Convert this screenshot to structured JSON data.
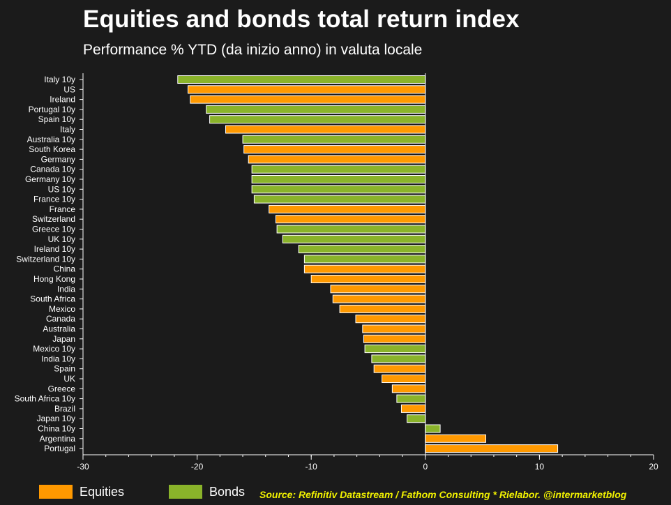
{
  "header": {
    "title": "Equities and bonds total return index",
    "subtitle": "Performance % YTD (da inizio anno) in valuta locale"
  },
  "legend": {
    "equities": "Equities",
    "bonds": "Bonds"
  },
  "source": "Source: Refinitiv Datastream / Fathom Consulting * Rielabor. @intermarketblog",
  "colors": {
    "background": "#1b1b1b",
    "equities": "#ff9900",
    "bonds": "#8ab32a",
    "bar_border": "#ffffff"
  },
  "chart_data": {
    "type": "bar",
    "orientation": "horizontal",
    "xlim": [
      -30,
      20
    ],
    "xticks": [
      -30,
      -20,
      -10,
      0,
      10,
      20
    ],
    "grid": false,
    "legend_position": "bottom-left",
    "categories": [
      "Italy 10y",
      "US",
      "Ireland",
      "Portugal 10y",
      "Spain 10y",
      "Italy",
      "Australia 10y",
      "South Korea",
      "Germany",
      "Canada 10y",
      "Germany 10y",
      "US 10y",
      "France 10y",
      "France",
      "Switzerland",
      "Greece 10y",
      "UK 10y",
      "Ireland 10y",
      "Switzerland 10y",
      "China",
      "Hong Kong",
      "India",
      "South Africa",
      "Mexico",
      "Canada",
      "Australia",
      "Japan",
      "Mexico 10y",
      "India 10y",
      "Spain",
      "UK",
      "Greece",
      "South Africa 10y",
      "Brazil",
      "Japan 10y",
      "China 10y",
      "Argentina",
      "Portugal"
    ],
    "values": [
      -21.7,
      -20.8,
      -20.6,
      -19.2,
      -18.9,
      -17.5,
      -16.0,
      -15.9,
      -15.5,
      -15.2,
      -15.2,
      -15.2,
      -15.0,
      -13.7,
      -13.1,
      -13.0,
      -12.5,
      -11.1,
      -10.6,
      -10.6,
      -10.0,
      -8.3,
      -8.1,
      -7.5,
      -6.1,
      -5.5,
      -5.4,
      -5.3,
      -4.7,
      -4.5,
      -3.8,
      -2.9,
      -2.5,
      -2.1,
      -1.6,
      1.3,
      5.3,
      11.6
    ],
    "asset_class": [
      "Bonds",
      "Equities",
      "Equities",
      "Bonds",
      "Bonds",
      "Equities",
      "Bonds",
      "Equities",
      "Equities",
      "Bonds",
      "Bonds",
      "Bonds",
      "Bonds",
      "Equities",
      "Equities",
      "Bonds",
      "Bonds",
      "Bonds",
      "Bonds",
      "Equities",
      "Equities",
      "Equities",
      "Equities",
      "Equities",
      "Equities",
      "Equities",
      "Equities",
      "Bonds",
      "Bonds",
      "Equities",
      "Equities",
      "Equities",
      "Bonds",
      "Equities",
      "Bonds",
      "Bonds",
      "Equities",
      "Equities"
    ]
  }
}
